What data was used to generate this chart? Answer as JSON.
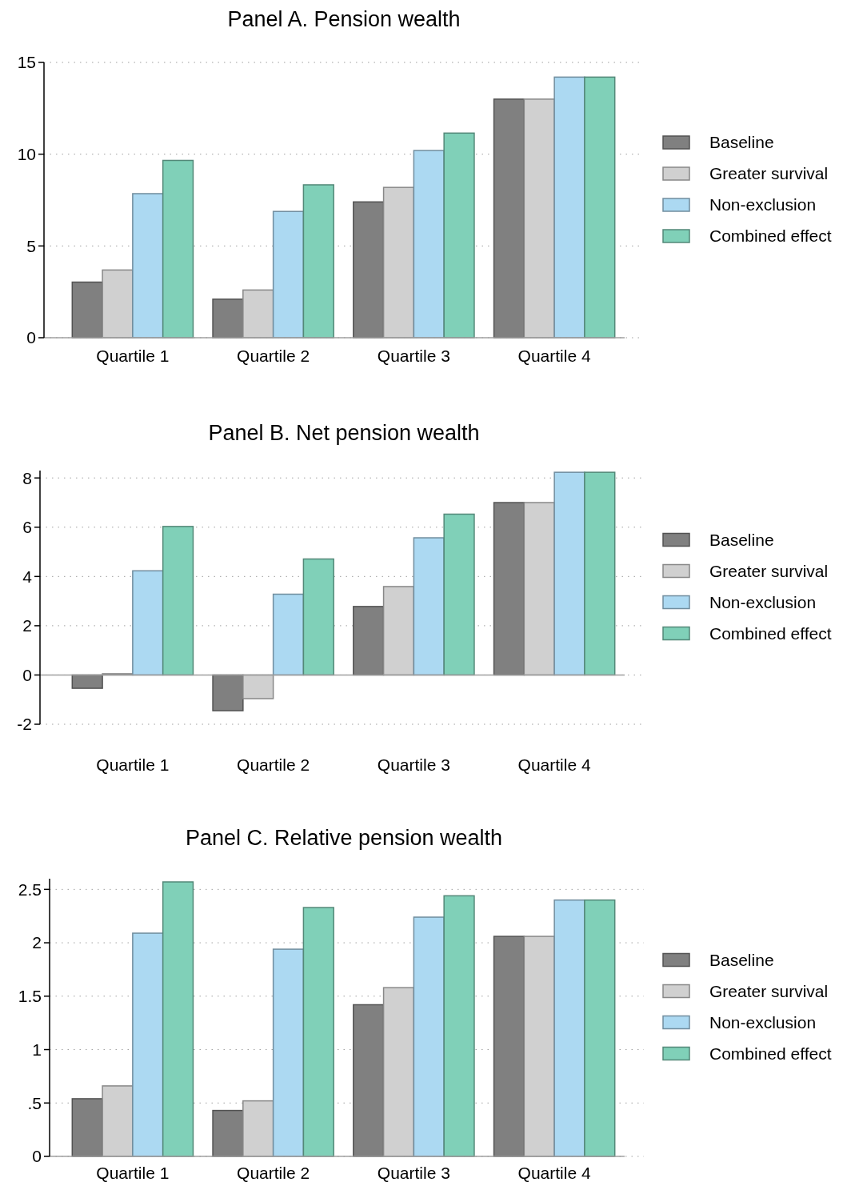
{
  "chart_data": [
    {
      "type": "bar",
      "title": "Panel A. Pension wealth",
      "categories": [
        "Quartile 1",
        "Quartile 2",
        "Quartile 3",
        "Quartile 4"
      ],
      "series": [
        {
          "name": "Baseline",
          "color": "#808080",
          "values": [
            3.03,
            2.1,
            7.4,
            13.0
          ]
        },
        {
          "name": "Greater survival",
          "color": "#d0d0d0",
          "values": [
            3.69,
            2.6,
            8.19,
            13.0
          ]
        },
        {
          "name": "Non-exclusion",
          "color": "#acd9f2",
          "values": [
            7.85,
            6.88,
            10.2,
            14.2
          ]
        },
        {
          "name": "Combined effect",
          "color": "#80d0b8",
          "values": [
            9.66,
            8.33,
            11.15,
            14.2
          ]
        }
      ],
      "ylim": [
        0,
        15
      ],
      "yticks": [
        0,
        5,
        10,
        15
      ],
      "grid": "y",
      "legend": "right"
    },
    {
      "type": "bar",
      "title": "Panel B. Net pension wealth",
      "categories": [
        "Quartile 1",
        "Quartile 2",
        "Quartile 3",
        "Quartile 4"
      ],
      "series": [
        {
          "name": "Baseline",
          "color": "#808080",
          "values": [
            -0.54,
            -1.45,
            2.78,
            7.0
          ]
        },
        {
          "name": "Greater survival",
          "color": "#d0d0d0",
          "values": [
            0.05,
            -0.96,
            3.59,
            7.0
          ]
        },
        {
          "name": "Non-exclusion",
          "color": "#acd9f2",
          "values": [
            4.23,
            3.28,
            5.57,
            8.23
          ]
        },
        {
          "name": "Combined effect",
          "color": "#80d0b8",
          "values": [
            6.03,
            4.71,
            6.53,
            8.23
          ]
        }
      ],
      "ylim": [
        -2,
        8.3
      ],
      "yticks": [
        -2,
        0,
        2,
        4,
        6,
        8
      ],
      "grid": "y",
      "legend": "right"
    },
    {
      "type": "bar",
      "title": "Panel C. Relative pension wealth",
      "categories": [
        "Quartile 1",
        "Quartile 2",
        "Quartile 3",
        "Quartile 4"
      ],
      "series": [
        {
          "name": "Baseline",
          "color": "#808080",
          "values": [
            0.54,
            0.43,
            1.42,
            2.06
          ]
        },
        {
          "name": "Greater survival",
          "color": "#d0d0d0",
          "values": [
            0.66,
            0.52,
            1.58,
            2.06
          ]
        },
        {
          "name": "Non-exclusion",
          "color": "#acd9f2",
          "values": [
            2.09,
            1.94,
            2.24,
            2.4
          ]
        },
        {
          "name": "Combined effect",
          "color": "#80d0b8",
          "values": [
            2.57,
            2.33,
            2.44,
            2.4
          ]
        }
      ],
      "ylim": [
        0,
        2.6
      ],
      "yticks": [
        0,
        {
          "value": 0.5,
          "label": ".5"
        },
        1,
        1.5,
        2,
        2.5
      ],
      "grid": "y",
      "legend": "right"
    }
  ]
}
